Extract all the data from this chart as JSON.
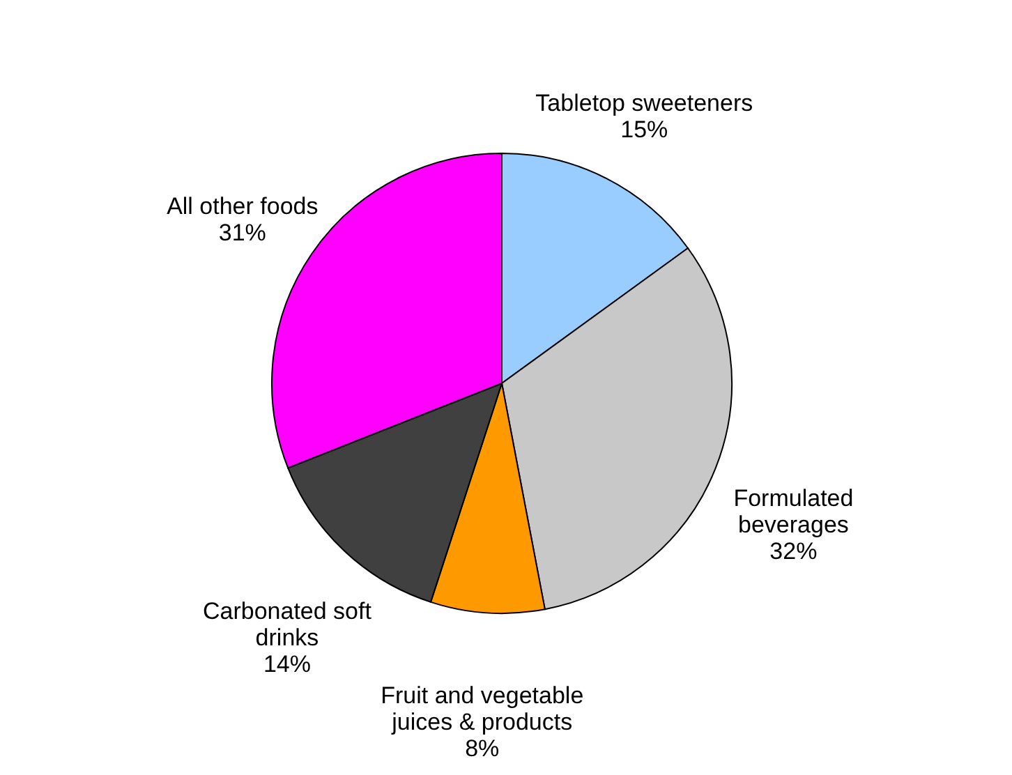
{
  "chart_data": {
    "type": "pie",
    "categories": [
      "Tabletop sweeteners",
      "Formulated beverages",
      "Fruit and vegetable juices & products",
      "Carbonated soft drinks",
      "All other foods"
    ],
    "values": [
      15,
      32,
      8,
      14,
      31
    ],
    "colors": [
      "#99ccff",
      "#c8c8c8",
      "#ff9900",
      "#404040",
      "#ff00ff"
    ],
    "value_labels": [
      "15%",
      "32%",
      "8%",
      "14%",
      "31%"
    ],
    "legend": false
  }
}
